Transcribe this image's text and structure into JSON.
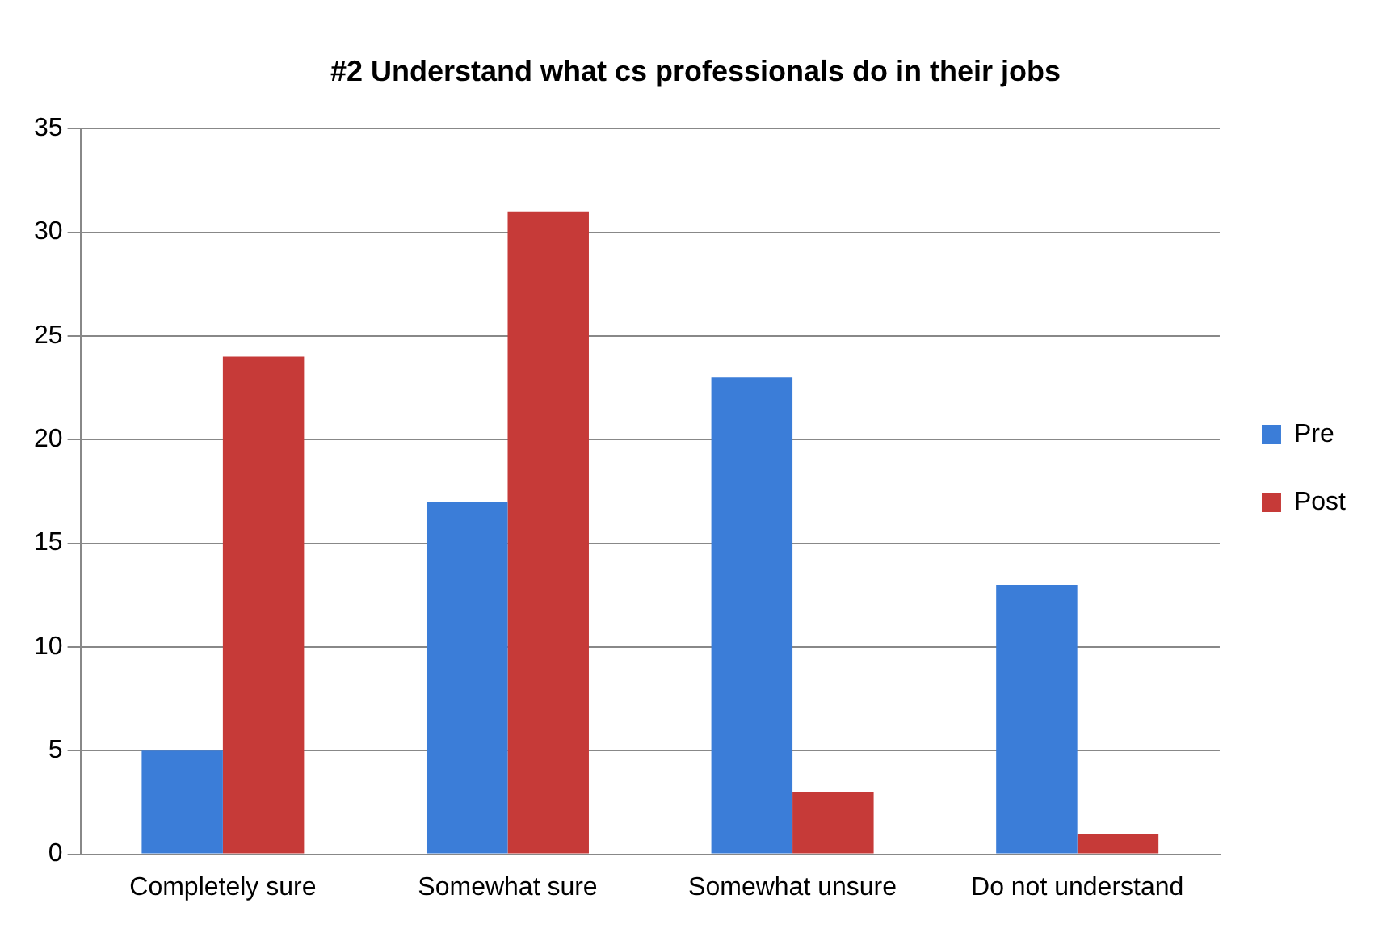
{
  "chart_data": {
    "type": "bar",
    "title": "#2 Understand what cs professionals do in their jobs",
    "categories": [
      "Completely sure",
      "Somewhat sure",
      "Somewhat unsure",
      "Do not understand"
    ],
    "series": [
      {
        "name": "Pre",
        "color": "#3b7dd8",
        "values": [
          5,
          17,
          23,
          13
        ]
      },
      {
        "name": "Post",
        "color": "#c63a38",
        "values": [
          24,
          31,
          3,
          1
        ]
      }
    ],
    "ylim": [
      0,
      35
    ],
    "yticks": [
      0,
      5,
      10,
      15,
      20,
      25,
      30,
      35
    ],
    "grid": "y",
    "legend": "right"
  }
}
